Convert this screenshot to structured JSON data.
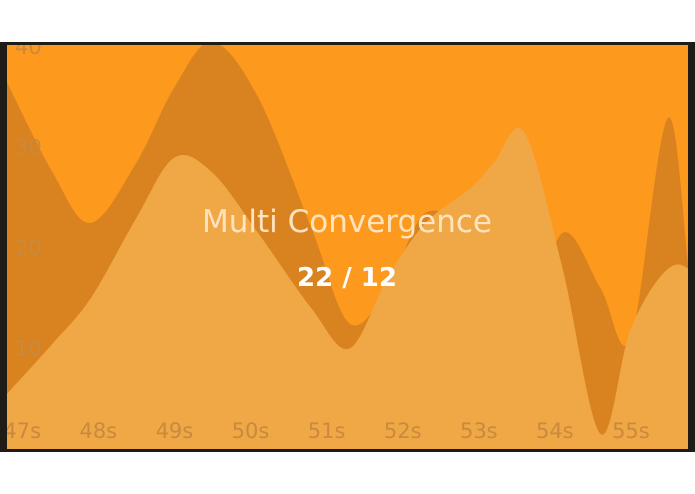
{
  "widget": {
    "title": "Multi Convergence",
    "ratio": "22 / 12"
  },
  "colors": {
    "background": "#fd9a1d",
    "frame": "#1f1c18",
    "tick": "#c98a3e",
    "title": "#ffe3bf",
    "ratio": "#ffffff"
  },
  "chart_data": {
    "type": "area",
    "x": [
      46.8,
      47.4,
      47.9,
      48.5,
      49.0,
      49.5,
      50.1,
      50.8,
      51.3,
      51.8,
      52.3,
      52.9,
      53.2,
      53.6,
      54.1,
      54.6,
      55.0,
      55.5,
      55.9,
      56.5
    ],
    "xlim": [
      46.8,
      55.75
    ],
    "ylim": [
      0,
      40.2
    ],
    "x_ticks": [
      "47s",
      "48s",
      "49s",
      "50s",
      "51s",
      "52s",
      "53s",
      "54s",
      "55s"
    ],
    "x_tick_values": [
      47,
      48,
      49,
      50,
      51,
      52,
      53,
      54,
      55
    ],
    "y_ticks": [
      "40",
      "30",
      "20",
      "10"
    ],
    "y_tick_values": [
      40,
      30,
      20,
      10
    ],
    "grid": false,
    "legend": "none",
    "series": [
      {
        "values": [
          36.5,
          27.5,
          22.5,
          28.5,
          36,
          40.5,
          35,
          22,
          12.5,
          16,
          23.5,
          21.5,
          18,
          11.5,
          21.5,
          16,
          11,
          33,
          11.5,
          21.5
        ],
        "color": "#d98220"
      },
      {
        "values": [
          5.5,
          10.5,
          15,
          23,
          29,
          27.5,
          21.5,
          14,
          10,
          17,
          22.5,
          26,
          28.5,
          31.5,
          18,
          1.5,
          12,
          18,
          17,
          11.5
        ],
        "color": "#f0a745"
      }
    ]
  }
}
